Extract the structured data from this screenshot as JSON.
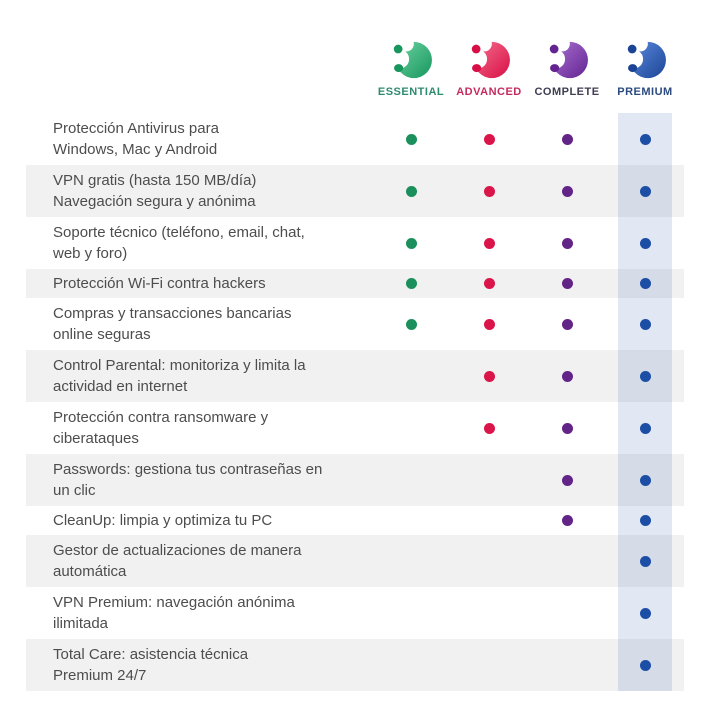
{
  "chart_data": {
    "type": "table",
    "title": "",
    "premium_band_color": "rgba(79,118,185,0.17)",
    "columns": [
      {
        "id": "essential",
        "label": "ESSENTIAL",
        "label_color": "#2f8b6e",
        "dot_color": "#1b8f5c",
        "logo_light": "#6ed3a2",
        "logo_dark": "#17965e",
        "highlight": false
      },
      {
        "id": "advanced",
        "label": "ADVANCED",
        "label_color": "#c42a5f",
        "dot_color": "#da1549",
        "logo_light": "#f4708c",
        "logo_dark": "#d80e47",
        "highlight": false
      },
      {
        "id": "complete",
        "label": "COMPLETE",
        "label_color": "#3e3d52",
        "dot_color": "#632487",
        "logo_light": "#aa72d3",
        "logo_dark": "#632390",
        "highlight": false
      },
      {
        "id": "premium",
        "label": "PREMIUM",
        "label_color": "#2b4a80",
        "dot_color": "#1c4ea6",
        "logo_light": "#5c8bdf",
        "logo_dark": "#1c4495",
        "highlight": true
      }
    ],
    "rows": [
      {
        "lines": [
          "Protección Antivirus para",
          "Windows, Mac y Android"
        ],
        "values": [
          true,
          true,
          true,
          true
        ]
      },
      {
        "lines": [
          "VPN gratis (hasta 150 MB/día)",
          "Navegación segura y anónima"
        ],
        "values": [
          true,
          true,
          true,
          true
        ]
      },
      {
        "lines": [
          "Soporte técnico (teléfono, email, chat,",
          "web y foro)"
        ],
        "values": [
          true,
          true,
          true,
          true
        ]
      },
      {
        "lines": [
          "Protección Wi-Fi contra hackers"
        ],
        "values": [
          true,
          true,
          true,
          true
        ]
      },
      {
        "lines": [
          "Compras y transacciones bancarias",
          "online seguras"
        ],
        "values": [
          true,
          true,
          true,
          true
        ]
      },
      {
        "lines": [
          "Control Parental: monitoriza y limita la",
          "actividad en internet"
        ],
        "values": [
          false,
          true,
          true,
          true
        ]
      },
      {
        "lines": [
          "Protección contra ransomware y",
          "ciberataques"
        ],
        "values": [
          false,
          true,
          true,
          true
        ]
      },
      {
        "lines": [
          "Passwords: gestiona tus contraseñas en",
          "un clic"
        ],
        "values": [
          false,
          false,
          true,
          true
        ]
      },
      {
        "lines": [
          "CleanUp: limpia y optimiza tu PC"
        ],
        "values": [
          false,
          false,
          true,
          true
        ]
      },
      {
        "lines": [
          "Gestor de actualizaciones de manera",
          "automática"
        ],
        "values": [
          false,
          false,
          false,
          true
        ]
      },
      {
        "lines": [
          "VPN Premium: navegación anónima",
          "ilimitada"
        ],
        "values": [
          false,
          false,
          false,
          true
        ]
      },
      {
        "lines": [
          "Total Care: asistencia técnica",
          "Premium 24/7"
        ],
        "values": [
          false,
          false,
          false,
          true
        ]
      }
    ]
  }
}
